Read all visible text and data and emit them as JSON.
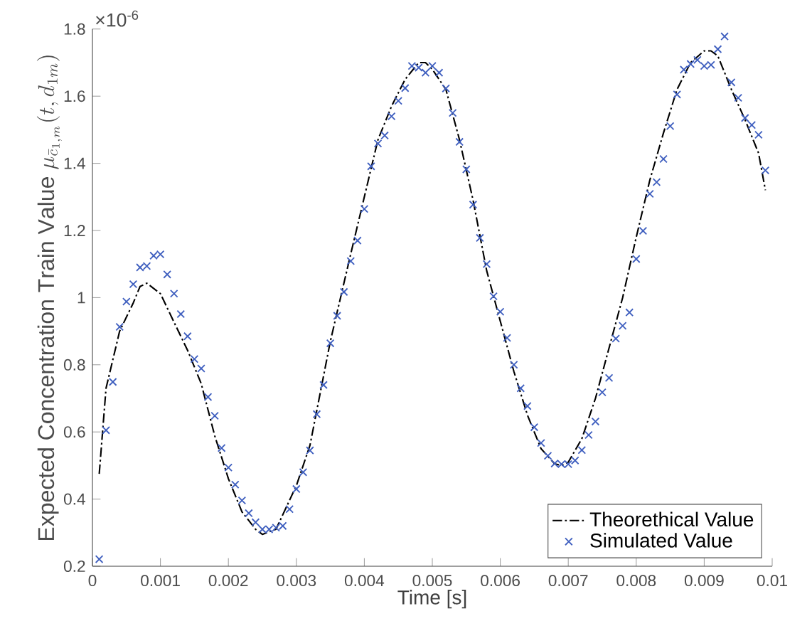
{
  "chart_data": {
    "type": "line",
    "xlabel": "Time [s]",
    "ylabel": "\\mathrm{Expected\\ Concentration\\ Train\\ Value}\\ \\mu_{\\bar{c}_{1,m}}(t,d_{1m})",
    "annotations": [
      "×10$^{-6}$"
    ],
    "xlim": [
      0,
      0.01
    ],
    "ylim": [
      0.2,
      1.8
    ],
    "xticks": [
      0,
      0.001,
      0.002,
      0.003,
      0.004,
      0.005,
      0.006,
      0.007,
      0.008,
      0.009,
      0.01
    ],
    "yticks": [
      0.2,
      0.4,
      0.6,
      0.8,
      1,
      1.2,
      1.4,
      1.6,
      1.8
    ],
    "legend": "bottom right",
    "series": [
      {
        "name": "Theorethical Value",
        "color": "#000000",
        "line_style": "dashdot",
        "marker": "none",
        "x": [
          0.0001,
          0.0002,
          0.0004,
          0.0006,
          0.0007,
          0.0008,
          0.001,
          0.0012,
          0.0014,
          0.0016,
          0.0018,
          0.002,
          0.0022,
          0.0024,
          0.0025,
          0.0027,
          0.003,
          0.0032,
          0.0035,
          0.0038,
          0.004,
          0.0042,
          0.0044,
          0.0046,
          0.0048,
          0.0049,
          0.005,
          0.0052,
          0.0054,
          0.0056,
          0.0058,
          0.006,
          0.0062,
          0.0064,
          0.0066,
          0.0068,
          0.0069,
          0.007,
          0.0072,
          0.0074,
          0.0076,
          0.0078,
          0.008,
          0.0082,
          0.0084,
          0.0086,
          0.0088,
          0.009,
          0.0091,
          0.0092,
          0.0094,
          0.0096,
          0.0098,
          0.0099
        ],
        "values": [
          0.475,
          0.73,
          0.9,
          0.984,
          1.033,
          1.043,
          1.012,
          0.927,
          0.843,
          0.744,
          0.588,
          0.461,
          0.362,
          0.31,
          0.295,
          0.31,
          0.44,
          0.56,
          0.87,
          1.13,
          1.3,
          1.47,
          1.57,
          1.65,
          1.7,
          1.7,
          1.68,
          1.62,
          1.47,
          1.29,
          1.08,
          0.93,
          0.78,
          0.65,
          0.55,
          0.505,
          0.5,
          0.51,
          0.58,
          0.7,
          0.85,
          1.0,
          1.18,
          1.35,
          1.49,
          1.62,
          1.7,
          1.735,
          1.735,
          1.72,
          1.62,
          1.53,
          1.43,
          1.32
        ]
      },
      {
        "name": "Simulated Value",
        "type": "scatter",
        "color": "#3f5fbf",
        "marker": "cross",
        "x": [
          0.0001,
          0.0002,
          0.0003,
          0.0004,
          0.0005,
          0.0006,
          0.0007,
          0.0008,
          0.0009,
          0.001,
          0.0011,
          0.0012,
          0.0013,
          0.0014,
          0.0015,
          0.0016,
          0.0017,
          0.0018,
          0.0019,
          0.002,
          0.0021,
          0.0022,
          0.0023,
          0.0024,
          0.0025,
          0.0026,
          0.0027,
          0.0028,
          0.0029,
          0.003,
          0.0031,
          0.0032,
          0.0033,
          0.0034,
          0.0035,
          0.0036,
          0.0037,
          0.0038,
          0.0039,
          0.004,
          0.0041,
          0.0042,
          0.0043,
          0.0044,
          0.0045,
          0.0046,
          0.0047,
          0.0048,
          0.0049,
          0.005,
          0.0051,
          0.0052,
          0.0053,
          0.0054,
          0.0055,
          0.0056,
          0.0057,
          0.0058,
          0.0059,
          0.006,
          0.0061,
          0.0062,
          0.0063,
          0.0064,
          0.0065,
          0.0066,
          0.0067,
          0.0068,
          0.0069,
          0.007,
          0.0071,
          0.0072,
          0.0073,
          0.0074,
          0.0075,
          0.0076,
          0.0077,
          0.0078,
          0.0079,
          0.008,
          0.0081,
          0.0082,
          0.0083,
          0.0084,
          0.0085,
          0.0086,
          0.0087,
          0.0088,
          0.0089,
          0.009,
          0.0091,
          0.0092,
          0.0093,
          0.0094,
          0.0095,
          0.0096,
          0.0097,
          0.0098,
          0.0099
        ],
        "values": [
          0.221,
          0.605,
          0.749,
          0.913,
          0.988,
          1.04,
          1.09,
          1.094,
          1.125,
          1.129,
          1.069,
          1.012,
          0.951,
          0.885,
          0.817,
          0.789,
          0.704,
          0.648,
          0.552,
          0.494,
          0.443,
          0.396,
          0.358,
          0.331,
          0.31,
          0.31,
          0.315,
          0.32,
          0.37,
          0.43,
          0.48,
          0.545,
          0.653,
          0.74,
          0.864,
          0.946,
          1.017,
          1.109,
          1.17,
          1.264,
          1.391,
          1.459,
          1.483,
          1.54,
          1.586,
          1.624,
          1.69,
          1.685,
          1.67,
          1.69,
          1.67,
          1.623,
          1.55,
          1.464,
          1.382,
          1.277,
          1.178,
          1.1,
          1.004,
          0.958,
          0.88,
          0.8,
          0.73,
          0.677,
          0.614,
          0.567,
          0.529,
          0.506,
          0.504,
          0.504,
          0.515,
          0.546,
          0.591,
          0.631,
          0.718,
          0.761,
          0.878,
          0.916,
          0.956,
          1.115,
          1.199,
          1.309,
          1.344,
          1.413,
          1.511,
          1.605,
          1.679,
          1.696,
          1.708,
          1.69,
          1.693,
          1.74,
          1.778,
          1.641,
          1.595,
          1.535,
          1.514,
          1.485,
          1.379
        ]
      }
    ]
  }
}
